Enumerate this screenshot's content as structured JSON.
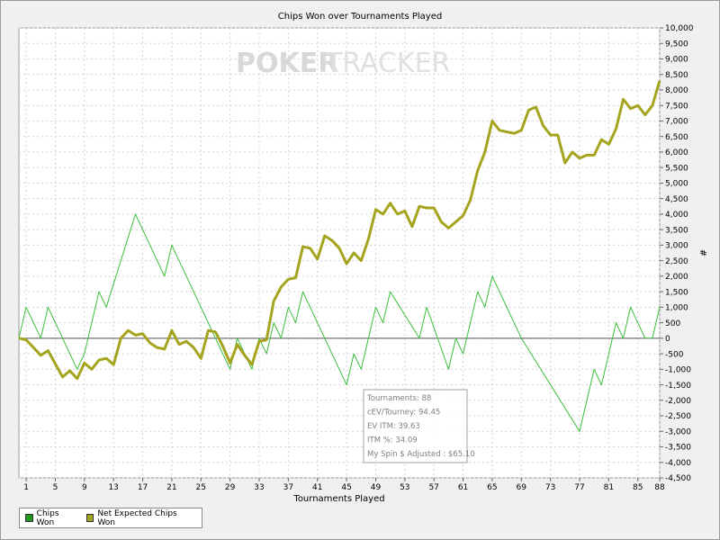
{
  "chart_data": {
    "type": "line",
    "title": "Chips Won over Tournaments Played",
    "xlabel": "Tournaments Played",
    "ylabel": "#",
    "watermark": {
      "part1": "POKER",
      "part2": "TRACKER"
    },
    "xlim": [
      0,
      88
    ],
    "ylim": [
      -4500,
      10000
    ],
    "x_ticks": [
      1,
      5,
      9,
      13,
      17,
      21,
      25,
      29,
      33,
      37,
      41,
      45,
      49,
      53,
      57,
      61,
      65,
      69,
      73,
      77,
      81,
      85,
      88
    ],
    "y_ticks": [
      -4500,
      -4000,
      -3500,
      -3000,
      -2500,
      -2000,
      -1500,
      -1000,
      -500,
      0,
      500,
      1000,
      1500,
      2000,
      2500,
      3000,
      3500,
      4000,
      4500,
      5000,
      5500,
      6000,
      6500,
      7000,
      7500,
      8000,
      8500,
      9000,
      9500,
      10000
    ],
    "y_tick_labels": [
      "-4,500",
      "-4,000",
      "-3,500",
      "-3,000",
      "-2,500",
      "-2,000",
      "-1,500",
      "-1,000",
      "-500",
      "0",
      "500",
      "1,000",
      "1,500",
      "2,000",
      "2,500",
      "3,000",
      "3,500",
      "4,000",
      "4,500",
      "5,000",
      "5,500",
      "6,000",
      "6,500",
      "7,000",
      "7,500",
      "8,000",
      "8,500",
      "9,000",
      "9,500",
      "10,000"
    ],
    "grid": true,
    "legend_position": "bottom-left",
    "series": [
      {
        "name": "Chips Won",
        "color": "#3cbf3c",
        "stroke_style": "thin",
        "x": [
          0,
          1,
          3,
          4,
          8,
          9,
          11,
          12,
          16,
          20,
          21,
          29,
          30,
          32,
          33,
          34,
          35,
          36,
          37,
          38,
          39,
          45,
          46,
          47,
          49,
          50,
          51,
          55,
          56,
          59,
          60,
          61,
          63,
          64,
          65,
          69,
          77,
          79,
          80,
          82,
          83,
          84,
          86,
          87,
          88
        ],
        "y": [
          0,
          1000,
          0,
          1000,
          -1000,
          -500,
          1500,
          1000,
          4000,
          2000,
          3000,
          -1000,
          0,
          -1000,
          0,
          -500,
          500,
          0,
          1000,
          500,
          1500,
          -1500,
          -500,
          -1000,
          1000,
          500,
          1500,
          0,
          1000,
          -1000,
          0,
          -500,
          1500,
          1000,
          2000,
          0,
          -3000,
          -1000,
          -1500,
          500,
          0,
          1000,
          0,
          0,
          1000
        ]
      },
      {
        "name": "Net Expected Chips Won",
        "color": "#a4a41e",
        "stroke_style": "thick",
        "x": [
          0,
          1,
          3,
          4,
          6,
          7,
          8,
          9,
          10,
          11,
          12,
          13,
          14,
          15,
          16,
          17,
          18,
          19,
          20,
          21,
          22,
          23,
          24,
          25,
          26,
          27,
          28,
          29,
          30,
          31,
          32,
          33,
          34,
          35,
          36,
          37,
          38,
          39,
          40,
          41,
          42,
          43,
          44,
          45,
          46,
          47,
          48,
          49,
          50,
          51,
          52,
          53,
          54,
          55,
          56,
          57,
          58,
          59,
          60,
          61,
          62,
          63,
          64,
          65,
          66,
          67,
          68,
          69,
          70,
          71,
          72,
          73,
          74,
          75,
          76,
          77,
          78,
          79,
          80,
          81,
          82,
          83,
          84,
          85,
          86,
          87,
          88
        ],
        "y": [
          0,
          -50,
          -550,
          -400,
          -1250,
          -1050,
          -1300,
          -800,
          -1000,
          -700,
          -650,
          -850,
          0,
          250,
          100,
          150,
          -150,
          -300,
          -350,
          250,
          -200,
          -100,
          -300,
          -650,
          250,
          200,
          -250,
          -800,
          -200,
          -550,
          -850,
          -100,
          -50,
          1200,
          1650,
          1900,
          1950,
          2950,
          2900,
          2550,
          3300,
          3150,
          2900,
          2400,
          2750,
          2500,
          3200,
          4150,
          4000,
          4350,
          4000,
          4100,
          3600,
          4250,
          4200,
          4200,
          3750,
          3550,
          3750,
          3950,
          4450,
          5400,
          6000,
          7000,
          6700,
          6650,
          6600,
          6700,
          7350,
          7450,
          6850,
          6550,
          6550,
          5650,
          6000,
          5800,
          5900,
          5900,
          6400,
          6250,
          6750,
          7700,
          7400,
          7500,
          7200,
          7500,
          8300
        ]
      }
    ],
    "stats_box": {
      "rows": [
        "Tournaments: 88",
        "cEV/Tourney: 94.45",
        "EV ITM: 39.63",
        "ITM %: 34.09",
        "My Spin $ Adjusted : $65.10"
      ]
    }
  }
}
